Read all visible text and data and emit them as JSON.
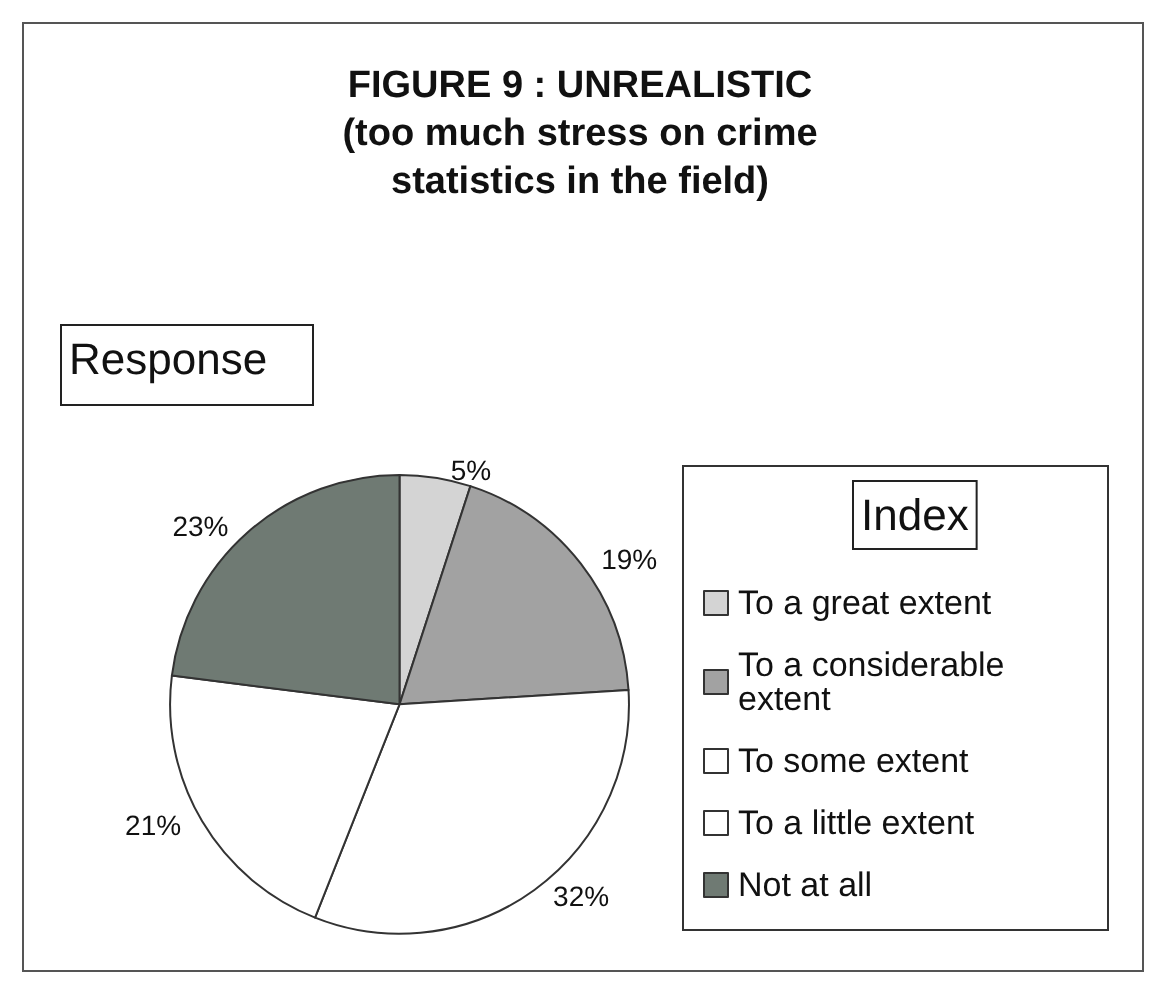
{
  "chart_data": {
    "type": "pie",
    "title": "FIGURE 9 : UNREALISTIC\n(too much stress on crime\nstatistics in the field)",
    "legend_title": "Index",
    "annotations": [
      "Response"
    ],
    "categories": [
      "To a great extent",
      "To a considerable extent",
      "To some extent",
      "To a little extent",
      "Not at all"
    ],
    "values": [
      5,
      19,
      32,
      21,
      23
    ],
    "colors": [
      "#d4d4d4",
      "#a2a2a2",
      "#ffffff",
      "#ffffff",
      "#6f7a73"
    ],
    "value_labels": [
      "5%",
      "19%",
      "32%",
      "21%",
      "23%"
    ],
    "legend": "right"
  }
}
